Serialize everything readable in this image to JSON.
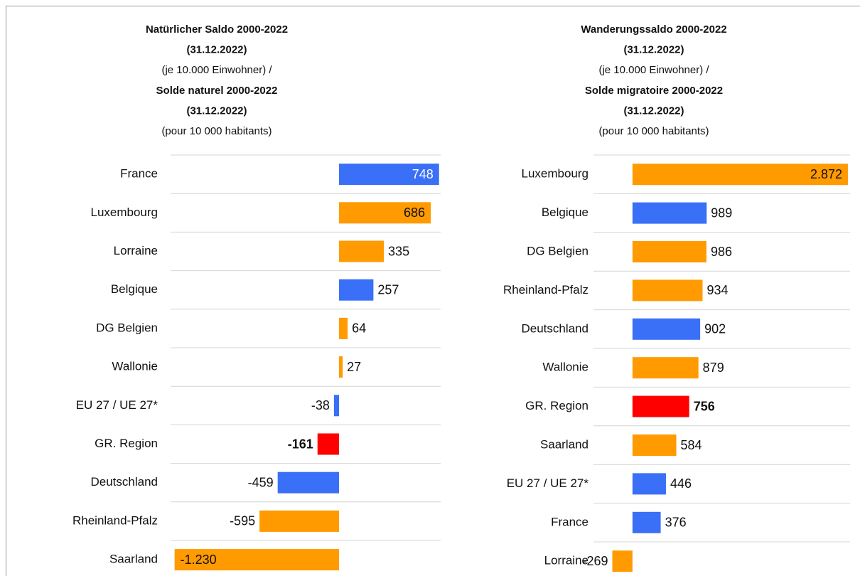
{
  "chart_data": [
    {
      "type": "hbar",
      "title_lines": [
        "Natürlicher Saldo 2000-2022",
        "(31.12.2022)",
        "(je 10.000 Einwohner) /",
        "Solde naturel 2000-2022",
        "(31.12.2022)",
        "(pour 10 000 habitants)"
      ],
      "title_bold": [
        true,
        true,
        false,
        true,
        true,
        false
      ],
      "categories": [
        "France",
        "Luxembourg",
        "Lorraine",
        "Belgique",
        "DG Belgien",
        "Wallonie",
        "EU 27 / UE 27*",
        "GR. Region",
        "Deutschland",
        "Rheinland-Pfalz",
        "Saarland"
      ],
      "values": [
        748,
        686,
        335,
        257,
        64,
        27,
        -38,
        -161,
        -459,
        -595,
        -1230
      ],
      "value_labels": [
        "748",
        "686",
        "335",
        "257",
        "64",
        "27",
        "-38",
        "-161",
        "-459",
        "-595",
        "-1.230"
      ],
      "value_label_bold": [
        false,
        false,
        false,
        false,
        false,
        false,
        false,
        true,
        false,
        false,
        false
      ],
      "colors": [
        "#3a6ff7",
        "#ff9a00",
        "#ff9a00",
        "#3a6ff7",
        "#ff9a00",
        "#ff9a00",
        "#3a6ff7",
        "#ff0000",
        "#3a6ff7",
        "#ff9a00",
        "#ff9a00"
      ],
      "xlim": [
        -1260,
        760
      ]
    },
    {
      "type": "hbar",
      "title_lines": [
        "Wanderungssaldo 2000-2022",
        "(31.12.2022)",
        "(je 10.000 Einwohner) /",
        "Solde migratoire 2000-2022",
        "(31.12.2022)",
        "(pour 10 000 habitants)"
      ],
      "title_bold": [
        true,
        true,
        false,
        true,
        true,
        false
      ],
      "categories": [
        "Luxembourg",
        "Belgique",
        "DG Belgien",
        "Rheinland-Pfalz",
        "Deutschland",
        "Wallonie",
        "GR. Region",
        "Saarland",
        "EU 27 / UE 27*",
        "France",
        "Lorraine"
      ],
      "values": [
        2872,
        989,
        986,
        934,
        902,
        879,
        756,
        584,
        446,
        376,
        -269
      ],
      "value_labels": [
        "2.872",
        "989",
        "986",
        "934",
        "902",
        "879",
        "756",
        "584",
        "446",
        "376",
        "-269"
      ],
      "value_label_bold": [
        false,
        false,
        false,
        false,
        false,
        false,
        true,
        false,
        false,
        false,
        false
      ],
      "colors": [
        "#ff9a00",
        "#3a6ff7",
        "#ff9a00",
        "#ff9a00",
        "#3a6ff7",
        "#ff9a00",
        "#ff0000",
        "#ff9a00",
        "#3a6ff7",
        "#3a6ff7",
        "#ff9a00"
      ],
      "xlim": [
        -520,
        2900
      ]
    }
  ]
}
